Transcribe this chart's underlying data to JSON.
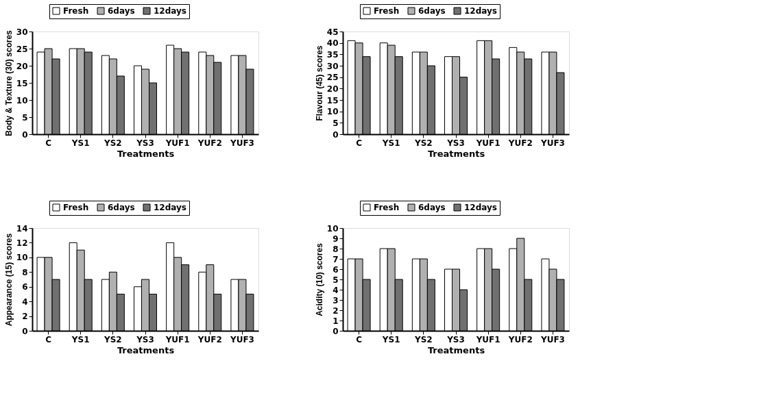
{
  "chart_data": [
    {
      "type": "bar",
      "ylabel": "Body & Texture  (30) scores",
      "xlabel": "Treatments",
      "categories": [
        "C",
        "YS1",
        "YS2",
        "YS3",
        "YUF1",
        "YUF2",
        "YUF3"
      ],
      "ylim": [
        0,
        30
      ],
      "yticks": [
        0,
        5,
        10,
        15,
        20,
        25,
        30
      ],
      "grid": false,
      "legend": "top",
      "series": [
        {
          "name": "Fresh",
          "color": "#ffffff",
          "values": [
            24,
            25,
            23,
            20,
            26,
            24,
            23
          ]
        },
        {
          "name": "6days",
          "color": "#b0b0b0",
          "values": [
            25,
            25,
            22,
            19,
            25,
            23,
            23
          ]
        },
        {
          "name": "12days",
          "color": "#707070",
          "values": [
            22,
            24,
            17,
            15,
            24,
            21,
            19
          ]
        }
      ]
    },
    {
      "type": "bar",
      "ylabel": "Flavour (45) scores",
      "xlabel": "Treatments",
      "categories": [
        "C",
        "YS1",
        "YS2",
        "YS3",
        "YUF1",
        "YUF2",
        "YUF3"
      ],
      "ylim": [
        0,
        45
      ],
      "yticks": [
        0,
        5,
        10,
        15,
        20,
        25,
        30,
        35,
        40,
        45
      ],
      "grid": false,
      "legend": "top",
      "series": [
        {
          "name": "Fresh",
          "color": "#ffffff",
          "values": [
            41,
            40,
            36,
            34,
            41,
            38,
            36
          ]
        },
        {
          "name": "6days",
          "color": "#b0b0b0",
          "values": [
            40,
            39,
            36,
            34,
            41,
            36,
            36
          ]
        },
        {
          "name": "12days",
          "color": "#707070",
          "values": [
            34,
            34,
            30,
            25,
            33,
            33,
            27
          ]
        }
      ]
    },
    {
      "type": "bar",
      "ylabel": "Appearance (15) scores",
      "xlabel": "Treatments",
      "categories": [
        "C",
        "YS1",
        "YS2",
        "YS3",
        "YUF1",
        "YUF2",
        "YUF3"
      ],
      "ylim": [
        0,
        14
      ],
      "yticks": [
        0,
        2,
        4,
        6,
        8,
        10,
        12,
        14
      ],
      "grid": false,
      "legend": "top",
      "series": [
        {
          "name": "Fresh",
          "color": "#ffffff",
          "values": [
            10,
            12,
            7,
            6,
            12,
            8,
            7
          ]
        },
        {
          "name": "6days",
          "color": "#b0b0b0",
          "values": [
            10,
            11,
            8,
            7,
            10,
            9,
            7
          ]
        },
        {
          "name": "12days",
          "color": "#707070",
          "values": [
            7,
            7,
            5,
            5,
            9,
            5,
            5
          ]
        }
      ]
    },
    {
      "type": "bar",
      "ylabel": "Acidity  (10) scores",
      "xlabel": "Treatments",
      "categories": [
        "C",
        "YS1",
        "YS2",
        "YS3",
        "YUF1",
        "YUF2",
        "YUF3"
      ],
      "ylim": [
        0,
        10
      ],
      "yticks": [
        0,
        1,
        2,
        3,
        4,
        5,
        6,
        7,
        8,
        9,
        10
      ],
      "grid": false,
      "legend": "top",
      "series": [
        {
          "name": "Fresh",
          "color": "#ffffff",
          "values": [
            7,
            8,
            7,
            6,
            8,
            8,
            7
          ]
        },
        {
          "name": "6days",
          "color": "#b0b0b0",
          "values": [
            7,
            8,
            7,
            6,
            8,
            9,
            6
          ]
        },
        {
          "name": "12days",
          "color": "#707070",
          "values": [
            5,
            5,
            5,
            4,
            6,
            5,
            5
          ]
        }
      ]
    }
  ]
}
